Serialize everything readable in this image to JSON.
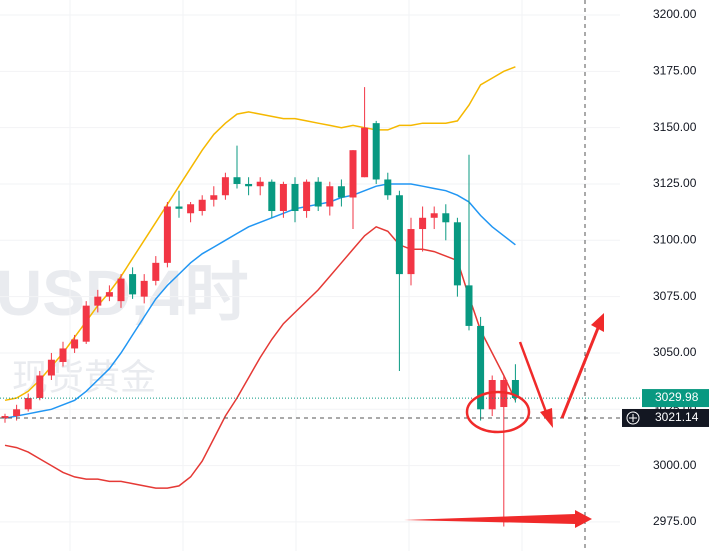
{
  "chart_data": {
    "type": "candlestick",
    "watermark": "USD,4时",
    "watermark_sub": "现货黄金",
    "up_color": "#f23645",
    "down_color": "#089981",
    "ylim": [
      2962.1,
      3206.66
    ],
    "yticks": [
      {
        "value": 2975,
        "label": "2975.00"
      },
      {
        "value": 3000,
        "label": "3000.00"
      },
      {
        "value": 3025,
        "label": "3025.00"
      },
      {
        "value": 3050,
        "label": "3050.00"
      },
      {
        "value": 3075,
        "label": "3075.00"
      },
      {
        "value": 3100,
        "label": "3100.00"
      },
      {
        "value": 3125,
        "label": "3125.00"
      },
      {
        "value": 3150,
        "label": "3150.00"
      },
      {
        "value": 3175,
        "label": "3175.00"
      },
      {
        "value": 3200,
        "label": "3200.00"
      }
    ],
    "open": [
      3021,
      3022,
      3025,
      3030,
      3040,
      3046,
      3052,
      3055,
      3071,
      3075,
      3073,
      3085,
      3075,
      3082,
      3090,
      3115,
      3112,
      3113,
      3118,
      3120,
      3128,
      3125,
      3124,
      3126,
      3113,
      3125,
      3113,
      3126,
      3115,
      3124,
      3119,
      3128,
      3152,
      3127,
      3120,
      3085,
      3105,
      3110,
      3112,
      3108,
      3080,
      3062,
      3025,
      3026,
      3038
    ],
    "high": [
      3023,
      3027,
      3032,
      3042,
      3050,
      3055,
      3058,
      3073,
      3078,
      3080,
      3085,
      3088,
      3085,
      3093,
      3117,
      3122,
      3117,
      3120,
      3124,
      3130,
      3142,
      3128,
      3128,
      3127,
      3126,
      3128,
      3127,
      3128,
      3126,
      3127,
      3140,
      3168,
      3153,
      3130,
      3122,
      3110,
      3115,
      3115,
      3116,
      3110,
      3138,
      3066,
      3040,
      3040,
      3045
    ],
    "low": [
      3019,
      3020,
      3024,
      3029,
      3038,
      3044,
      3050,
      3054,
      3068,
      3073,
      3070,
      3074,
      3072,
      3080,
      3088,
      3110,
      3108,
      3111,
      3115,
      3118,
      3123,
      3120,
      3120,
      3110,
      3110,
      3108,
      3110,
      3113,
      3111,
      3115,
      3105,
      3128,
      3125,
      3118,
      3042,
      3080,
      3095,
      3105,
      3100,
      3075,
      3060,
      3020,
      3022,
      2973,
      3028
    ],
    "close": [
      3022,
      3025,
      3030,
      3040,
      3047,
      3052,
      3056,
      3071,
      3075,
      3077,
      3083,
      3076,
      3082,
      3090,
      3115,
      3114,
      3116,
      3118,
      3120,
      3128,
      3125,
      3124,
      3126,
      3113,
      3125,
      3113,
      3126,
      3115,
      3124,
      3119,
      3140,
      3150,
      3127,
      3120,
      3085,
      3105,
      3110,
      3112,
      3108,
      3080,
      3062,
      3025,
      3038,
      3038,
      3030
    ],
    "lines": [
      {
        "color": "#f5b800",
        "values": [
          3029,
          3030,
          3033,
          3038,
          3044,
          3050,
          3057,
          3064,
          3071,
          3077,
          3084,
          3092,
          3100,
          3108,
          3116,
          3124,
          3132,
          3140,
          3147,
          3152,
          3156,
          3157,
          3156,
          3155,
          3154,
          3154,
          3153,
          3152,
          3151,
          3150,
          3151,
          3150,
          3149,
          3149,
          3151,
          3151,
          3152,
          3152,
          3152,
          3153,
          3160,
          3169,
          3172,
          3175,
          3177
        ]
      },
      {
        "color": "#2196f3",
        "values": [
          3021,
          3022,
          3023,
          3024,
          3025,
          3027,
          3029,
          3033,
          3038,
          3043,
          3050,
          3058,
          3066,
          3074,
          3080,
          3085,
          3090,
          3094,
          3097,
          3100,
          3103,
          3106,
          3108,
          3110,
          3112,
          3114,
          3115,
          3116,
          3117,
          3119,
          3120,
          3122,
          3124,
          3125,
          3125,
          3125,
          3124,
          3123,
          3122,
          3120,
          3117,
          3111,
          3106,
          3102,
          3098
        ]
      },
      {
        "color": "#e53935",
        "values": [
          3009,
          3008,
          3006,
          3003,
          3000,
          2997,
          2995,
          2994,
          2994,
          2993,
          2993,
          2992,
          2991,
          2990,
          2990,
          2991,
          2995,
          3002,
          3012,
          3022,
          3030,
          3039,
          3048,
          3056,
          3063,
          3068,
          3073,
          3078,
          3084,
          3090,
          3096,
          3102,
          3106,
          3104,
          3098,
          3096,
          3096,
          3095,
          3093,
          3091,
          3075,
          3060,
          3050,
          3040,
          3029
        ]
      }
    ],
    "last_price": 3029.98,
    "last_price_color": "#089981",
    "crosshair_price": 3021.14
  }
}
